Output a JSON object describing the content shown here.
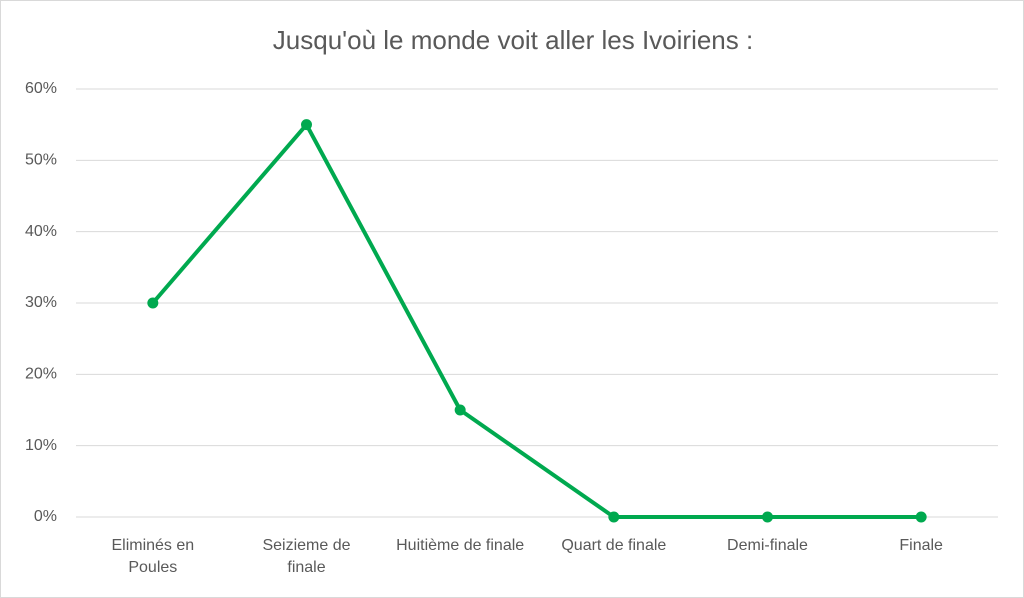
{
  "chart_data": {
    "type": "line",
    "title": "Jusqu'où le monde voit aller les Ivoiriens :",
    "categories": [
      "Eliminés en Poules",
      "Seizieme de finale",
      "Huitième de finale",
      "Quart de finale",
      "Demi-finale",
      "Finale"
    ],
    "series": [
      {
        "color": "#00a94f",
        "values": [
          30,
          55,
          15,
          0,
          0,
          0
        ]
      }
    ],
    "ylim": [
      0,
      60
    ],
    "yticks": [
      {
        "value": 0,
        "label": "0%"
      },
      {
        "value": 10,
        "label": "10%"
      },
      {
        "value": 20,
        "label": "20%"
      },
      {
        "value": 30,
        "label": "30%"
      },
      {
        "value": 40,
        "label": "40%"
      },
      {
        "value": 50,
        "label": "50%"
      },
      {
        "value": 60,
        "label": "60%"
      }
    ],
    "grid": true
  }
}
